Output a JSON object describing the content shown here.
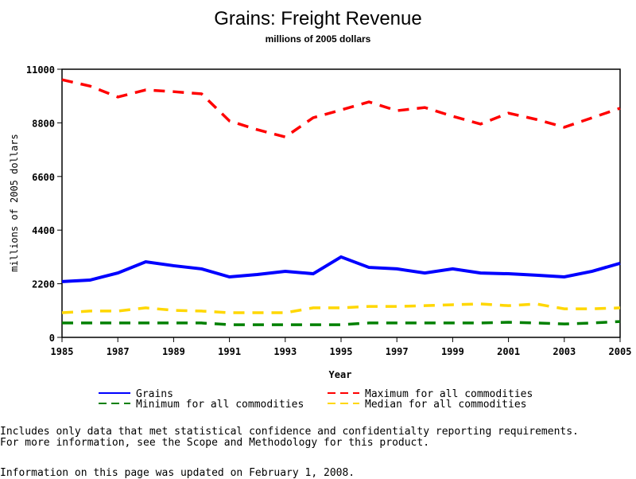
{
  "chart_data": {
    "type": "line",
    "title": "Grains: Freight Revenue",
    "subtitle": "millions of 2005 dollars",
    "xlabel": "Year",
    "ylabel": "millions of 2005 dollars",
    "ylim": [
      0,
      11000
    ],
    "xlim": [
      1985,
      2005
    ],
    "yticks": [
      0,
      2200,
      4400,
      6600,
      8800,
      11000
    ],
    "xticks": [
      1985,
      1987,
      1989,
      1991,
      1993,
      1995,
      1997,
      1999,
      2001,
      2003,
      2005
    ],
    "x": [
      1985,
      1986,
      1987,
      1988,
      1989,
      1990,
      1991,
      1992,
      1993,
      1994,
      1995,
      1996,
      1997,
      1998,
      1999,
      2000,
      2001,
      2002,
      2003,
      2004,
      2005
    ],
    "series": [
      {
        "name": "Grains",
        "color": "#0000ff",
        "dash": "solid",
        "values": [
          2290,
          2350,
          2640,
          3100,
          2940,
          2810,
          2480,
          2580,
          2710,
          2610,
          3300,
          2870,
          2810,
          2640,
          2810,
          2640,
          2610,
          2550,
          2480,
          2710,
          3040
        ]
      },
      {
        "name": "Maximum for all commodities",
        "color": "#ff0000",
        "dash": "dashed",
        "values": [
          10570,
          10310,
          9860,
          10150,
          10080,
          9990,
          8880,
          8520,
          8220,
          9010,
          9330,
          9660,
          9300,
          9430,
          9070,
          8750,
          9200,
          8940,
          8620,
          9010,
          9400
        ]
      },
      {
        "name": "Minimum for all commodities",
        "color": "#008000",
        "dash": "dashed",
        "values": [
          590,
          590,
          590,
          590,
          590,
          590,
          520,
          520,
          520,
          520,
          520,
          590,
          590,
          590,
          590,
          590,
          620,
          590,
          550,
          590,
          650
        ]
      },
      {
        "name": "Median for all commodities",
        "color": "#ffd700",
        "dash": "dashed",
        "values": [
          1010,
          1080,
          1080,
          1210,
          1110,
          1080,
          1010,
          1010,
          1010,
          1210,
          1210,
          1270,
          1270,
          1300,
          1340,
          1370,
          1300,
          1370,
          1170,
          1170,
          1210
        ]
      }
    ],
    "grid": false,
    "legend_placement": "bottom"
  },
  "notes": {
    "line1": "Includes only data that met statistical confidence and confidentialty reporting requirements.",
    "line2": "For more information, see the Scope and Methodology for this product.",
    "updated": "Information on this page was updated on February 1, 2008."
  }
}
